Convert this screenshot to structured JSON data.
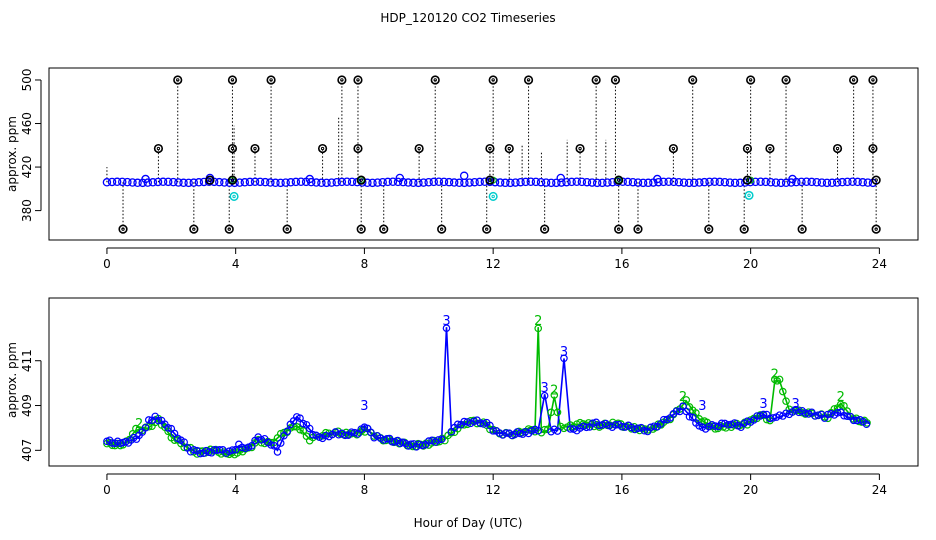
{
  "chart_data": [
    {
      "type": "scatter",
      "title": "HDP_120120  CO2 Timeseries",
      "ylabel": "approx. ppm",
      "xlabel": "",
      "xlim": [
        -1.8,
        25.2
      ],
      "ylim": [
        353,
        511
      ],
      "xticks": [
        0,
        4,
        8,
        12,
        16,
        20,
        24
      ],
      "yticks": [
        380,
        420,
        460,
        500
      ],
      "yticklabels": [
        "380",
        "420",
        "460",
        "500"
      ],
      "baseline": 406,
      "colors": {
        "main": "#0000ff",
        "outlier": "#000000",
        "secondary": "#00bb00",
        "flag": "#00cccc"
      },
      "main_series": {
        "x_start": 0.0,
        "x_end": 23.8,
        "approx_value": 406
      },
      "spikes_high": [
        2.2,
        3.9,
        5.1,
        7.3,
        7.8,
        10.2,
        12.0,
        13.1,
        15.2,
        15.8,
        18.2,
        20.0,
        21.1,
        23.2,
        23.8
      ],
      "spikes_mid": [
        1.6,
        3.9,
        4.6,
        6.7,
        7.8,
        9.7,
        11.9,
        12.5,
        14.7,
        17.6,
        19.9,
        20.6,
        22.7,
        23.8
      ],
      "spikes_low": [
        0.5,
        2.7,
        3.8,
        5.6,
        7.9,
        8.6,
        10.4,
        11.8,
        13.6,
        15.9,
        16.5,
        18.7,
        19.8,
        21.6,
        23.9
      ],
      "high_value": 500,
      "mid_value": 437,
      "low_value": 363,
      "bumps": [
        {
          "x": 1.2,
          "y": 409
        },
        {
          "x": 3.2,
          "y": 410
        },
        {
          "x": 6.3,
          "y": 409
        },
        {
          "x": 9.1,
          "y": 410
        },
        {
          "x": 11.1,
          "y": 412
        },
        {
          "x": 14.1,
          "y": 410
        },
        {
          "x": 17.1,
          "y": 409
        },
        {
          "x": 21.3,
          "y": 409
        }
      ],
      "flags": [
        {
          "x": 3.95,
          "y": 393
        },
        {
          "x": 12.0,
          "y": 393
        },
        {
          "x": 19.95,
          "y": 394
        }
      ],
      "dotted_lines": [
        {
          "x": 0.0,
          "to": 420
        },
        {
          "x": 3.95,
          "to": 458
        },
        {
          "x": 7.2,
          "to": 466
        },
        {
          "x": 12.9,
          "to": 440
        },
        {
          "x": 13.5,
          "to": 434
        },
        {
          "x": 14.3,
          "to": 445
        },
        {
          "x": 15.5,
          "to": 445
        }
      ]
    },
    {
      "type": "line",
      "title": "",
      "ylabel": "approx. ppm",
      "xlabel": "Hour of Day (UTC)",
      "xlim": [
        -1.8,
        25.2
      ],
      "ylim": [
        406.3,
        413.8
      ],
      "xticks": [
        0,
        4,
        8,
        12,
        16,
        20,
        24
      ],
      "yticks": [
        407,
        409,
        411
      ],
      "yticklabels": [
        "407",
        "409",
        "411"
      ],
      "marker_labels": [
        "2",
        "3"
      ],
      "colors": {
        "series_3": "#0000ff",
        "series_2": "#00bb00"
      },
      "series_3": {
        "x": [
          0.0,
          0.5,
          1.0,
          1.3,
          1.5,
          1.8,
          2.2,
          2.6,
          3.0,
          3.5,
          3.8,
          4.1,
          4.4,
          4.7,
          5.0,
          5.3,
          5.6,
          5.9,
          6.2,
          6.5,
          6.8,
          7.1,
          7.4,
          7.8,
          8.0,
          8.3,
          8.7,
          9.2,
          9.7,
          10.1,
          10.4,
          10.55,
          10.7,
          11.0,
          11.4,
          11.8,
          12.1,
          12.5,
          13.0,
          13.4,
          13.6,
          13.8,
          14.0,
          14.2,
          14.4,
          14.8,
          15.2,
          15.6,
          16.0,
          16.4,
          16.8,
          17.2,
          17.6,
          17.9,
          18.2,
          18.5,
          18.9,
          19.3,
          19.7,
          20.1,
          20.4,
          20.7,
          20.9,
          21.1,
          21.4,
          21.7,
          22.0,
          22.3,
          22.7,
          23.0,
          23.4,
          23.7
        ],
        "values": [
          407.4,
          407.3,
          407.6,
          408.3,
          408.5,
          408.2,
          407.6,
          407.0,
          406.9,
          407.0,
          406.9,
          407.2,
          407.1,
          407.6,
          407.4,
          407.0,
          407.9,
          408.5,
          408.1,
          407.6,
          407.6,
          407.8,
          407.7,
          407.8,
          408.1,
          407.6,
          407.5,
          407.3,
          407.2,
          407.4,
          407.5,
          412.5,
          407.9,
          408.2,
          408.3,
          408.2,
          407.8,
          407.7,
          407.8,
          407.9,
          409.5,
          407.9,
          407.9,
          411.1,
          407.9,
          408.0,
          408.2,
          408.1,
          408.1,
          408.0,
          407.9,
          408.2,
          408.6,
          408.9,
          408.4,
          408.0,
          408.1,
          408.2,
          408.1,
          408.4,
          408.6,
          408.4,
          408.5,
          408.6,
          408.8,
          408.7,
          408.6,
          408.5,
          408.7,
          408.5,
          408.3,
          408.2
        ]
      },
      "series_2": {
        "x": [
          0.0,
          0.5,
          0.9,
          1.3,
          1.6,
          2.0,
          2.4,
          2.8,
          3.3,
          3.8,
          4.3,
          4.7,
          5.1,
          5.5,
          5.9,
          6.3,
          6.7,
          7.1,
          7.6,
          8.1,
          8.5,
          9.0,
          9.5,
          10.0,
          10.5,
          10.9,
          11.3,
          11.7,
          12.1,
          12.5,
          12.9,
          13.1,
          13.3,
          13.4,
          13.5,
          13.7,
          13.9,
          14.1,
          14.4,
          14.8,
          15.3,
          15.8,
          16.3,
          16.8,
          17.3,
          17.7,
          18.0,
          18.4,
          18.9,
          19.4,
          19.9,
          20.3,
          20.6,
          20.75,
          20.9,
          21.2,
          21.6,
          22.0,
          22.4,
          22.8,
          23.2,
          23.7
        ],
        "values": [
          407.3,
          407.2,
          407.9,
          408.0,
          408.4,
          407.6,
          407.2,
          406.9,
          407.0,
          406.8,
          407.0,
          407.4,
          407.3,
          407.8,
          408.1,
          407.5,
          407.7,
          407.8,
          407.7,
          407.9,
          407.5,
          407.4,
          407.2,
          407.3,
          407.5,
          408.0,
          408.3,
          408.2,
          407.8,
          407.7,
          407.8,
          408.0,
          407.9,
          412.5,
          407.8,
          407.9,
          409.4,
          408.0,
          408.1,
          408.2,
          408.1,
          408.2,
          408.0,
          407.9,
          408.2,
          408.7,
          409.2,
          408.4,
          408.0,
          408.1,
          408.2,
          408.6,
          408.3,
          410.1,
          410.1,
          408.8,
          408.7,
          408.6,
          408.5,
          409.1,
          408.4,
          408.2
        ]
      },
      "labels_3": [
        {
          "x": 10.55,
          "y": 412.6
        },
        {
          "x": 13.6,
          "y": 409.6
        },
        {
          "x": 14.2,
          "y": 411.2
        },
        {
          "x": 8.0,
          "y": 408.8
        },
        {
          "x": 18.5,
          "y": 408.8
        },
        {
          "x": 20.4,
          "y": 408.9
        },
        {
          "x": 21.4,
          "y": 408.9
        }
      ],
      "labels_2": [
        {
          "x": 13.4,
          "y": 412.6
        },
        {
          "x": 13.9,
          "y": 409.5
        },
        {
          "x": 17.9,
          "y": 409.2
        },
        {
          "x": 20.75,
          "y": 410.2
        },
        {
          "x": 22.8,
          "y": 409.2
        },
        {
          "x": 1.0,
          "y": 408.0
        }
      ]
    }
  ]
}
